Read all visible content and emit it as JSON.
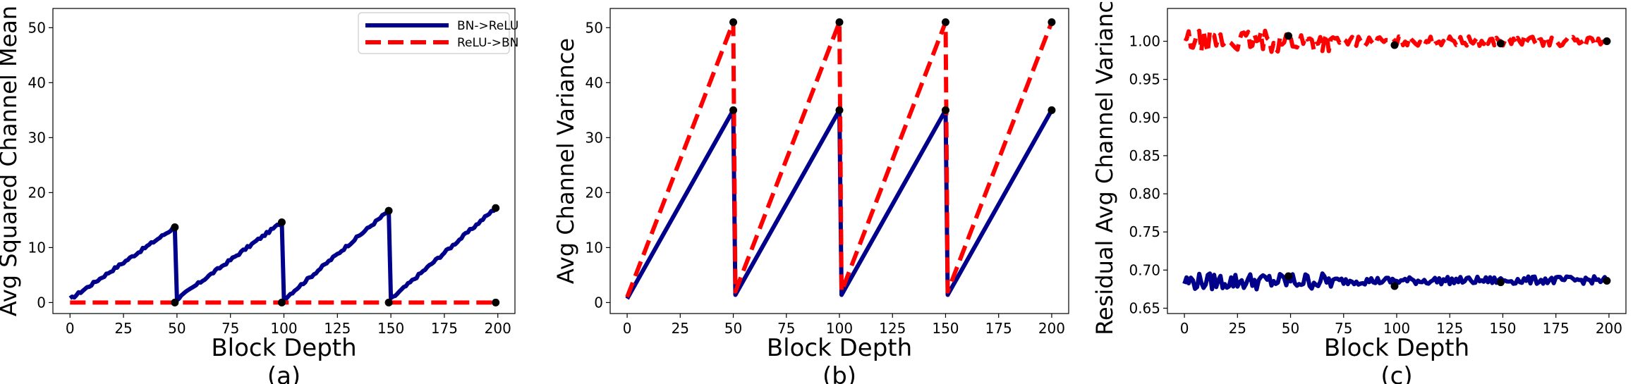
{
  "colors": {
    "bn_relu": "#00008B",
    "relu_bn": "#FF0000",
    "marker": "#000000"
  },
  "chart_data": [
    {
      "type": "line",
      "panel_label": "(a)",
      "xlabel": "Block Depth",
      "ylabel": "Avg Squared Channel Mean",
      "xlim": [
        -8,
        208
      ],
      "ylim": [
        -2,
        53.5
      ],
      "xticks": [
        0,
        25,
        50,
        75,
        100,
        125,
        150,
        175,
        200
      ],
      "yticks": [
        0,
        10,
        20,
        30,
        40,
        50
      ],
      "ytick_decimals": 0,
      "legend": {
        "position": "top-right",
        "entries": [
          "BN->ReLU",
          "ReLU->BN"
        ]
      },
      "series": [
        {
          "name": "BN->ReLU",
          "style": "solid",
          "noise": 0.25,
          "points": [
            [
              0,
              0.6
            ],
            [
              49,
              13.7
            ],
            [
              50,
              0.6
            ],
            [
              99,
              14.6
            ],
            [
              100,
              0.6
            ],
            [
              149,
              16.7
            ],
            [
              150,
              0.6
            ],
            [
              199,
              17.2
            ]
          ],
          "markers": [
            [
              49,
              13.7
            ],
            [
              99,
              14.6
            ],
            [
              149,
              16.7
            ],
            [
              199,
              17.2
            ]
          ]
        },
        {
          "name": "ReLU->BN",
          "style": "dashed",
          "noise": 0,
          "points": [
            [
              0,
              0
            ],
            [
              199,
              0
            ]
          ],
          "markers": [
            [
              49,
              0
            ],
            [
              99,
              0
            ],
            [
              149,
              0
            ],
            [
              199,
              0
            ]
          ]
        }
      ]
    },
    {
      "type": "line",
      "panel_label": "(b)",
      "xlabel": "Block Depth",
      "ylabel": "Avg Channel Variance",
      "xlim": [
        -8,
        208
      ],
      "ylim": [
        -2,
        53.5
      ],
      "xticks": [
        0,
        25,
        50,
        75,
        100,
        125,
        150,
        175,
        200
      ],
      "yticks": [
        0,
        10,
        20,
        30,
        40,
        50
      ],
      "ytick_decimals": 0,
      "series": [
        {
          "name": "BN->ReLU",
          "style": "solid",
          "noise": 0,
          "points": [
            [
              0,
              0.7
            ],
            [
              50,
              35
            ],
            [
              51,
              1.4
            ],
            [
              100,
              35
            ],
            [
              101,
              1.4
            ],
            [
              150,
              35
            ],
            [
              151,
              1.4
            ],
            [
              200,
              35
            ]
          ],
          "markers": [
            [
              50,
              35
            ],
            [
              100,
              35
            ],
            [
              150,
              35
            ],
            [
              200,
              35
            ]
          ]
        },
        {
          "name": "ReLU->BN",
          "style": "dashed",
          "noise": 0,
          "points": [
            [
              0,
              1
            ],
            [
              50,
              51
            ],
            [
              51,
              2
            ],
            [
              100,
              51
            ],
            [
              101,
              2
            ],
            [
              150,
              51
            ],
            [
              151,
              2
            ],
            [
              200,
              51
            ]
          ],
          "markers": [
            [
              50,
              51
            ],
            [
              100,
              51
            ],
            [
              150,
              51
            ],
            [
              200,
              51
            ]
          ]
        }
      ]
    },
    {
      "type": "line",
      "panel_label": "(c)",
      "xlabel": "Block Depth",
      "ylabel": "Residual Avg Channel Variance",
      "xlim": [
        -8,
        208
      ],
      "ylim": [
        0.643,
        1.043
      ],
      "xticks": [
        0,
        25,
        50,
        75,
        100,
        125,
        150,
        175,
        200
      ],
      "yticks": [
        0.65,
        0.7,
        0.75,
        0.8,
        0.85,
        0.9,
        0.95,
        1.0
      ],
      "ytick_decimals": 2,
      "series": [
        {
          "name": "BN->ReLU",
          "style": "solid",
          "noise": 0.011,
          "noise_decay": true,
          "points": [
            [
              0,
              0.685
            ],
            [
              199,
              0.687
            ]
          ],
          "markers": [
            [
              49,
              0.692
            ],
            [
              99,
              0.679
            ],
            [
              149,
              0.684
            ],
            [
              199,
              0.686
            ]
          ]
        },
        {
          "name": "ReLU->BN",
          "style": "dashed",
          "noise": 0.014,
          "noise_decay": true,
          "points": [
            [
              0,
              1.0
            ],
            [
              199,
              1.0
            ]
          ],
          "markers": [
            [
              49,
              1.007
            ],
            [
              99,
              0.995
            ],
            [
              149,
              0.997
            ],
            [
              199,
              1.0
            ]
          ]
        }
      ]
    }
  ]
}
